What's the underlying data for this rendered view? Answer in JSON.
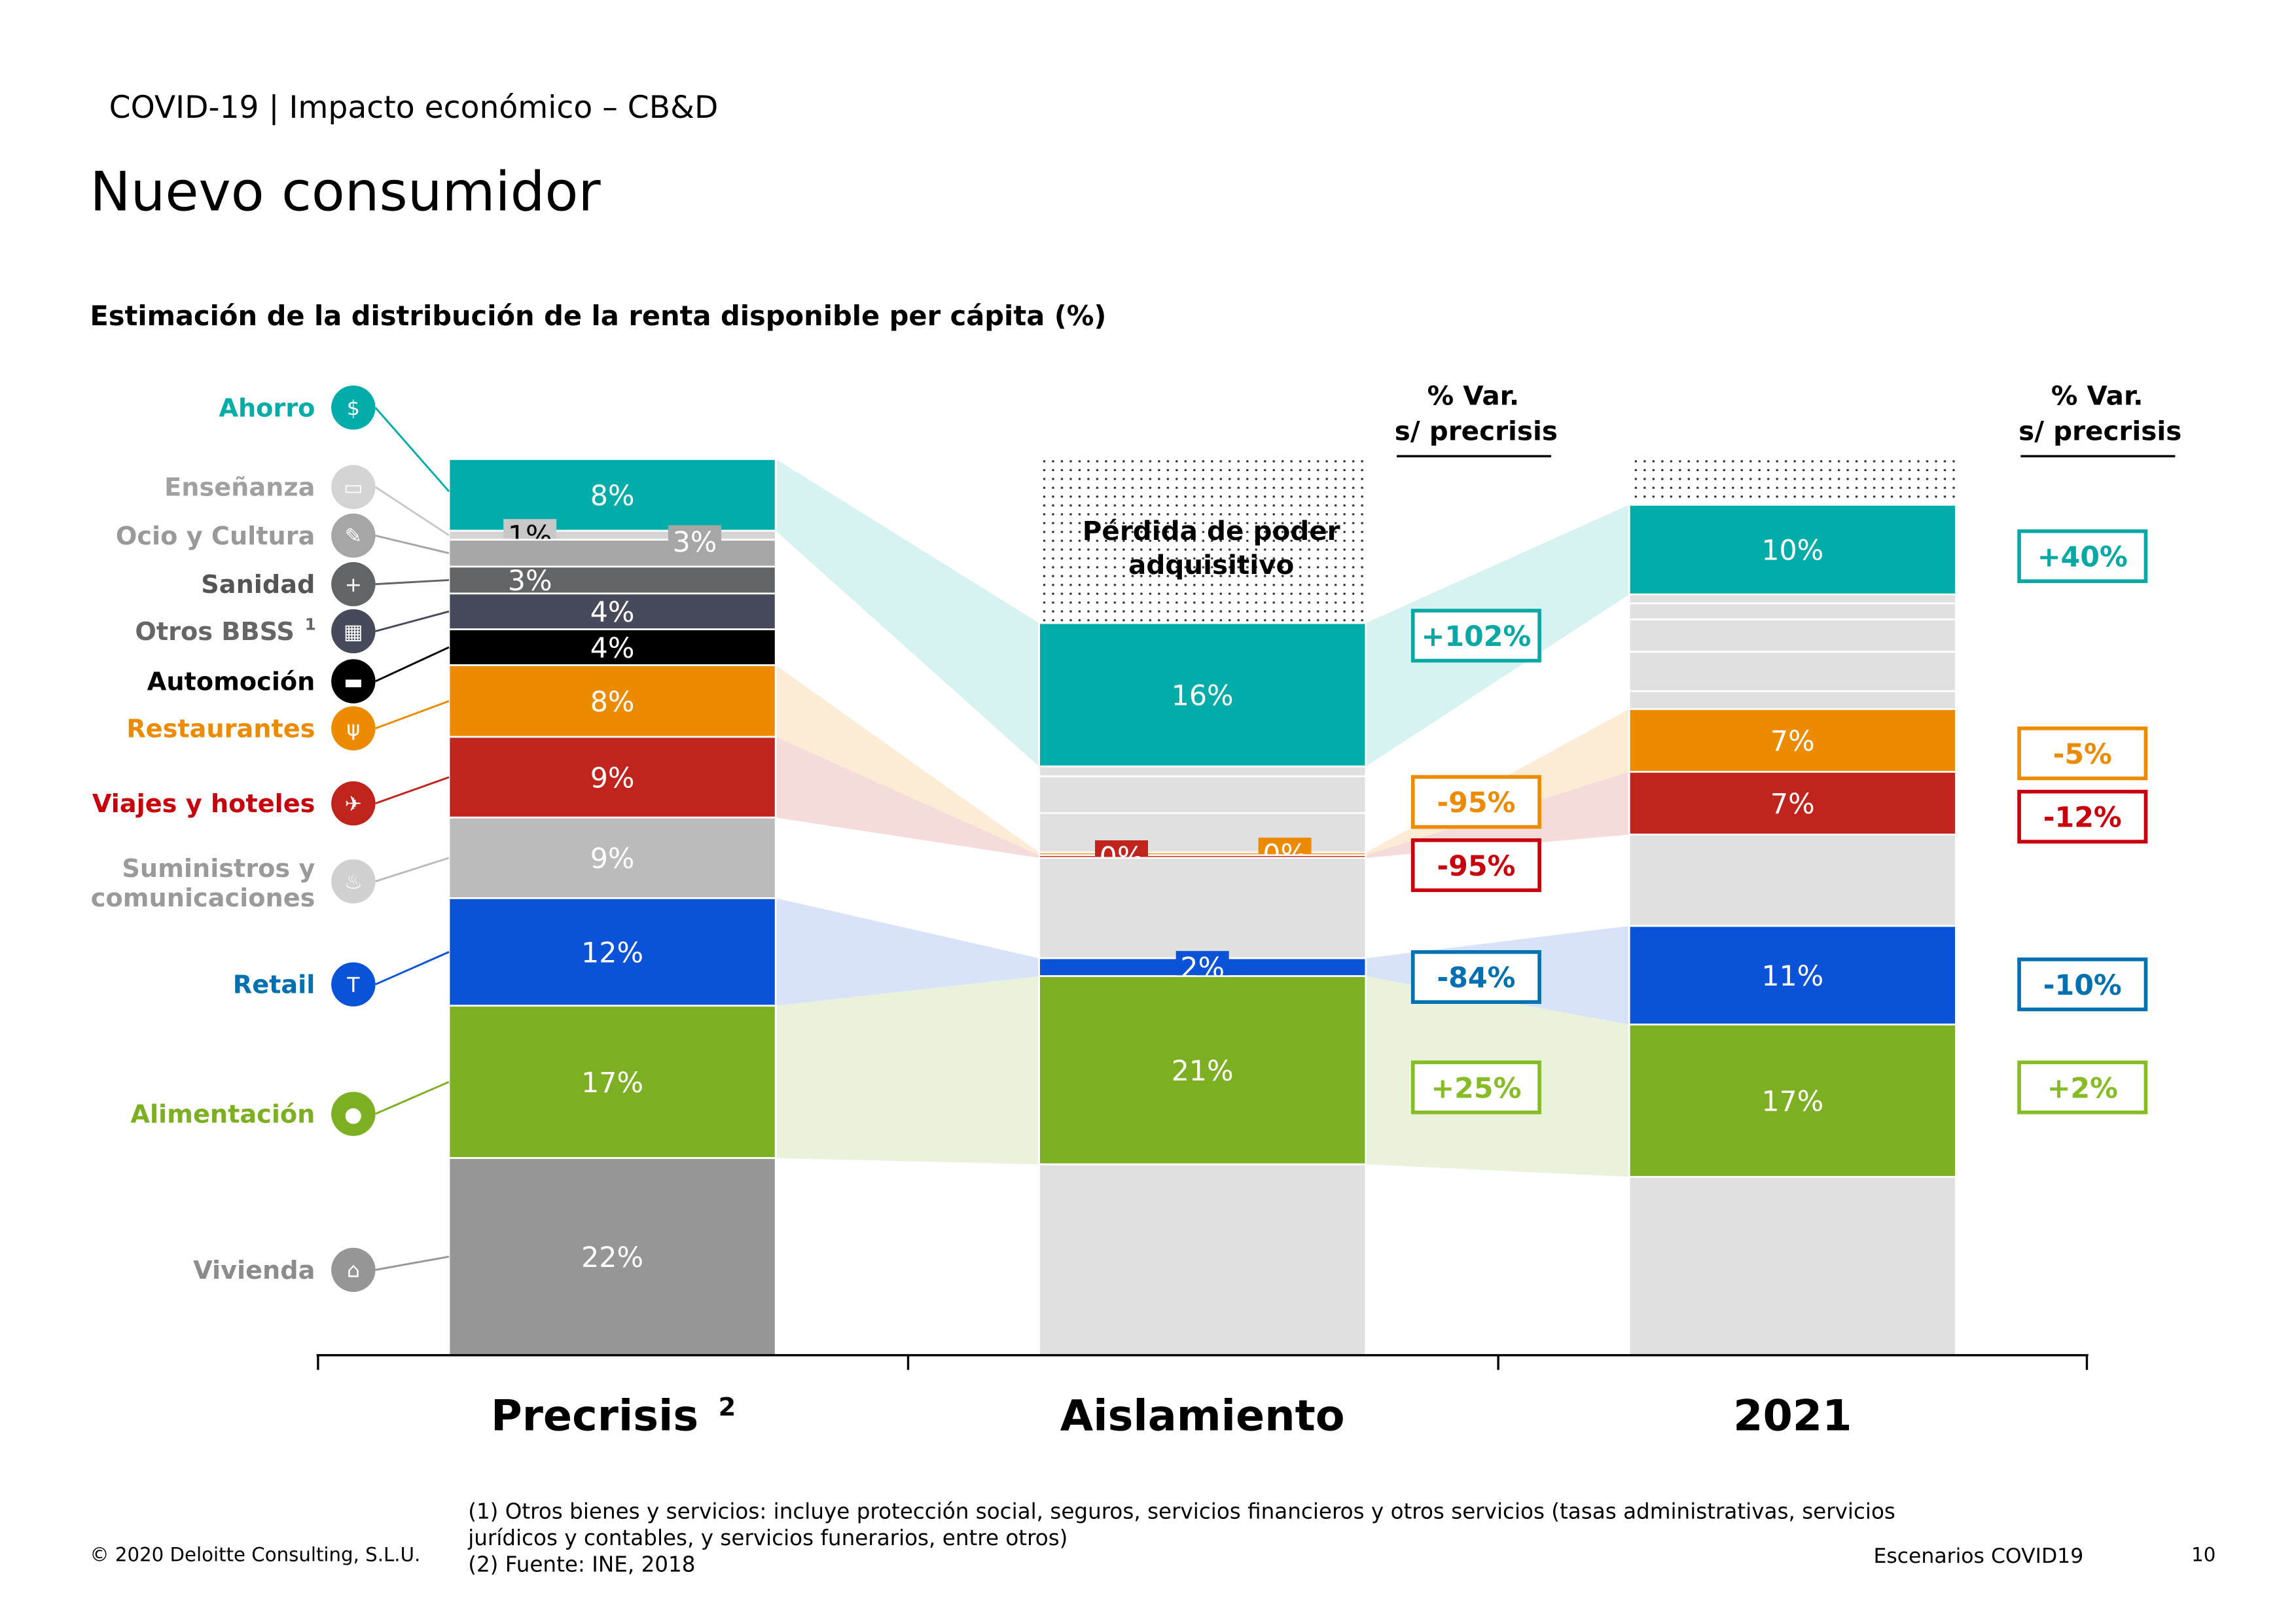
{
  "header": {
    "section": "COVID-19 | Impacto económico – CB&D",
    "title": "Nuevo consumidor",
    "subtitle": "Estimación de la distribución de la renta disponible per cápita (%)"
  },
  "var_header": {
    "line1": "% Var.",
    "line2": "s/ precrisis"
  },
  "loss_label": {
    "line1": "Pérdida de poder",
    "line2": "adquisitivo"
  },
  "chart_data": {
    "type": "bar",
    "stacked": true,
    "title": "Estimación de la distribución de la renta disponible per cápita (%)",
    "categories": [
      "Precrisis",
      "Aislamiento",
      "2021"
    ],
    "category_superscripts": [
      "2",
      "",
      ""
    ],
    "ylim": [
      0,
      100
    ],
    "grid": false,
    "loss_pct": [
      0,
      19,
      5
    ],
    "inactive_color": "#e0e0e0",
    "series": [
      {
        "name": "Ahorro",
        "icon": "money-bag-icon",
        "color": "#02aca9",
        "text_color": "#02aca9",
        "highlight": true,
        "values": [
          8,
          16,
          10
        ],
        "labels": [
          "8%",
          "16%",
          "10%"
        ],
        "var": [
          null,
          "+102%",
          "+40%"
        ],
        "var_color": "#0aa8a5"
      },
      {
        "name": "Enseñanza",
        "icon": "book-icon",
        "color": "#d4d4d4",
        "text_color": "#a0a0a0",
        "highlight": false,
        "values": [
          1,
          1.1,
          1
        ],
        "labels": [
          "1%",
          null,
          null
        ]
      },
      {
        "name": "Ocio y Cultura",
        "icon": "paintbrush-icon",
        "color": "#a6a6a6",
        "text_color": "#999999",
        "highlight": false,
        "values": [
          3,
          4.1,
          1.8
        ],
        "labels": [
          "3%",
          null,
          null
        ]
      },
      {
        "name": "Sanidad",
        "icon": "medicine-icon",
        "color": "#636466",
        "text_color": "#555555",
        "highlight": false,
        "values": [
          3,
          4.4,
          3.6
        ],
        "labels": [
          "3%",
          null,
          null
        ]
      },
      {
        "name": "Otros BBSS",
        "superscript": "1",
        "icon": "grid-icon",
        "color": "#474a5a",
        "text_color": "#666666",
        "highlight": false,
        "values": [
          4,
          0,
          4.4
        ],
        "labels": [
          "4%",
          null,
          null
        ]
      },
      {
        "name": "Automoción",
        "icon": "car-icon",
        "color": "#000000",
        "text_color": "#000000",
        "highlight": false,
        "values": [
          4,
          0,
          2
        ],
        "labels": [
          "4%",
          null,
          null
        ]
      },
      {
        "name": "Restaurantes",
        "icon": "cutlery-icon",
        "color": "#ed8b00",
        "text_color": "#ed8b00",
        "highlight": true,
        "values": [
          8,
          0.3,
          7
        ],
        "labels": [
          "8%",
          "0%",
          "7%"
        ],
        "var": [
          null,
          "-95%",
          "-5%"
        ],
        "var_color": "#ed8b00"
      },
      {
        "name": "Viajes y hoteles",
        "icon": "airplane-icon",
        "color": "#c0241c",
        "text_color": "#c8000c",
        "highlight": true,
        "values": [
          9,
          0.3,
          7
        ],
        "labels": [
          "9%",
          "0%",
          "7%"
        ],
        "var": [
          null,
          "-95%",
          "-12%"
        ],
        "var_color": "#c8000c"
      },
      {
        "name": "Suministros y comunicaciones",
        "name_lines": [
          "Suministros y",
          "comunicaciones"
        ],
        "icon": "flame-icon",
        "color": "#bbbbbb",
        "text_color": "#9a9a9a",
        "highlight": false,
        "values": [
          9,
          11.2,
          10.2
        ],
        "labels": [
          "9%",
          null,
          null
        ]
      },
      {
        "name": "Retail",
        "icon": "tshirt-icon",
        "color": "#0a52d8",
        "text_color": "#0070b0",
        "highlight": true,
        "values": [
          12,
          2,
          11
        ],
        "labels": [
          "12%",
          "2%",
          "11%"
        ],
        "var": [
          null,
          "-84%",
          "-10%"
        ],
        "var_color": "#0070b0"
      },
      {
        "name": "Alimentación",
        "icon": "apple-icon",
        "color": "#7daf23",
        "text_color": "#7daf23",
        "highlight": true,
        "values": [
          17,
          21,
          17
        ],
        "labels": [
          "17%",
          "21%",
          "17%"
        ],
        "var": [
          null,
          "+25%",
          "+2%"
        ],
        "var_color": "#86bc25"
      },
      {
        "name": "Vivienda",
        "icon": "house-icon",
        "color": "#969696",
        "text_color": "#8c8c8c",
        "highlight": false,
        "values": [
          22,
          21.3,
          19.9
        ],
        "labels": [
          "22%",
          null,
          null
        ]
      }
    ]
  },
  "footnotes": {
    "note1_line1": "(1) Otros bienes y servicios: incluye protección social, seguros, servicios financieros y otros servicios (tasas administrativas, servicios",
    "note1_line2": "jurídicos y contables, y servicios funerarios, entre otros)",
    "note2": "(2) Fuente: INE, 2018"
  },
  "footer": {
    "copyright": "© 2020 Deloitte Consulting, S.L.U.",
    "doc_name": "Escenarios COVID19",
    "page": "10"
  }
}
